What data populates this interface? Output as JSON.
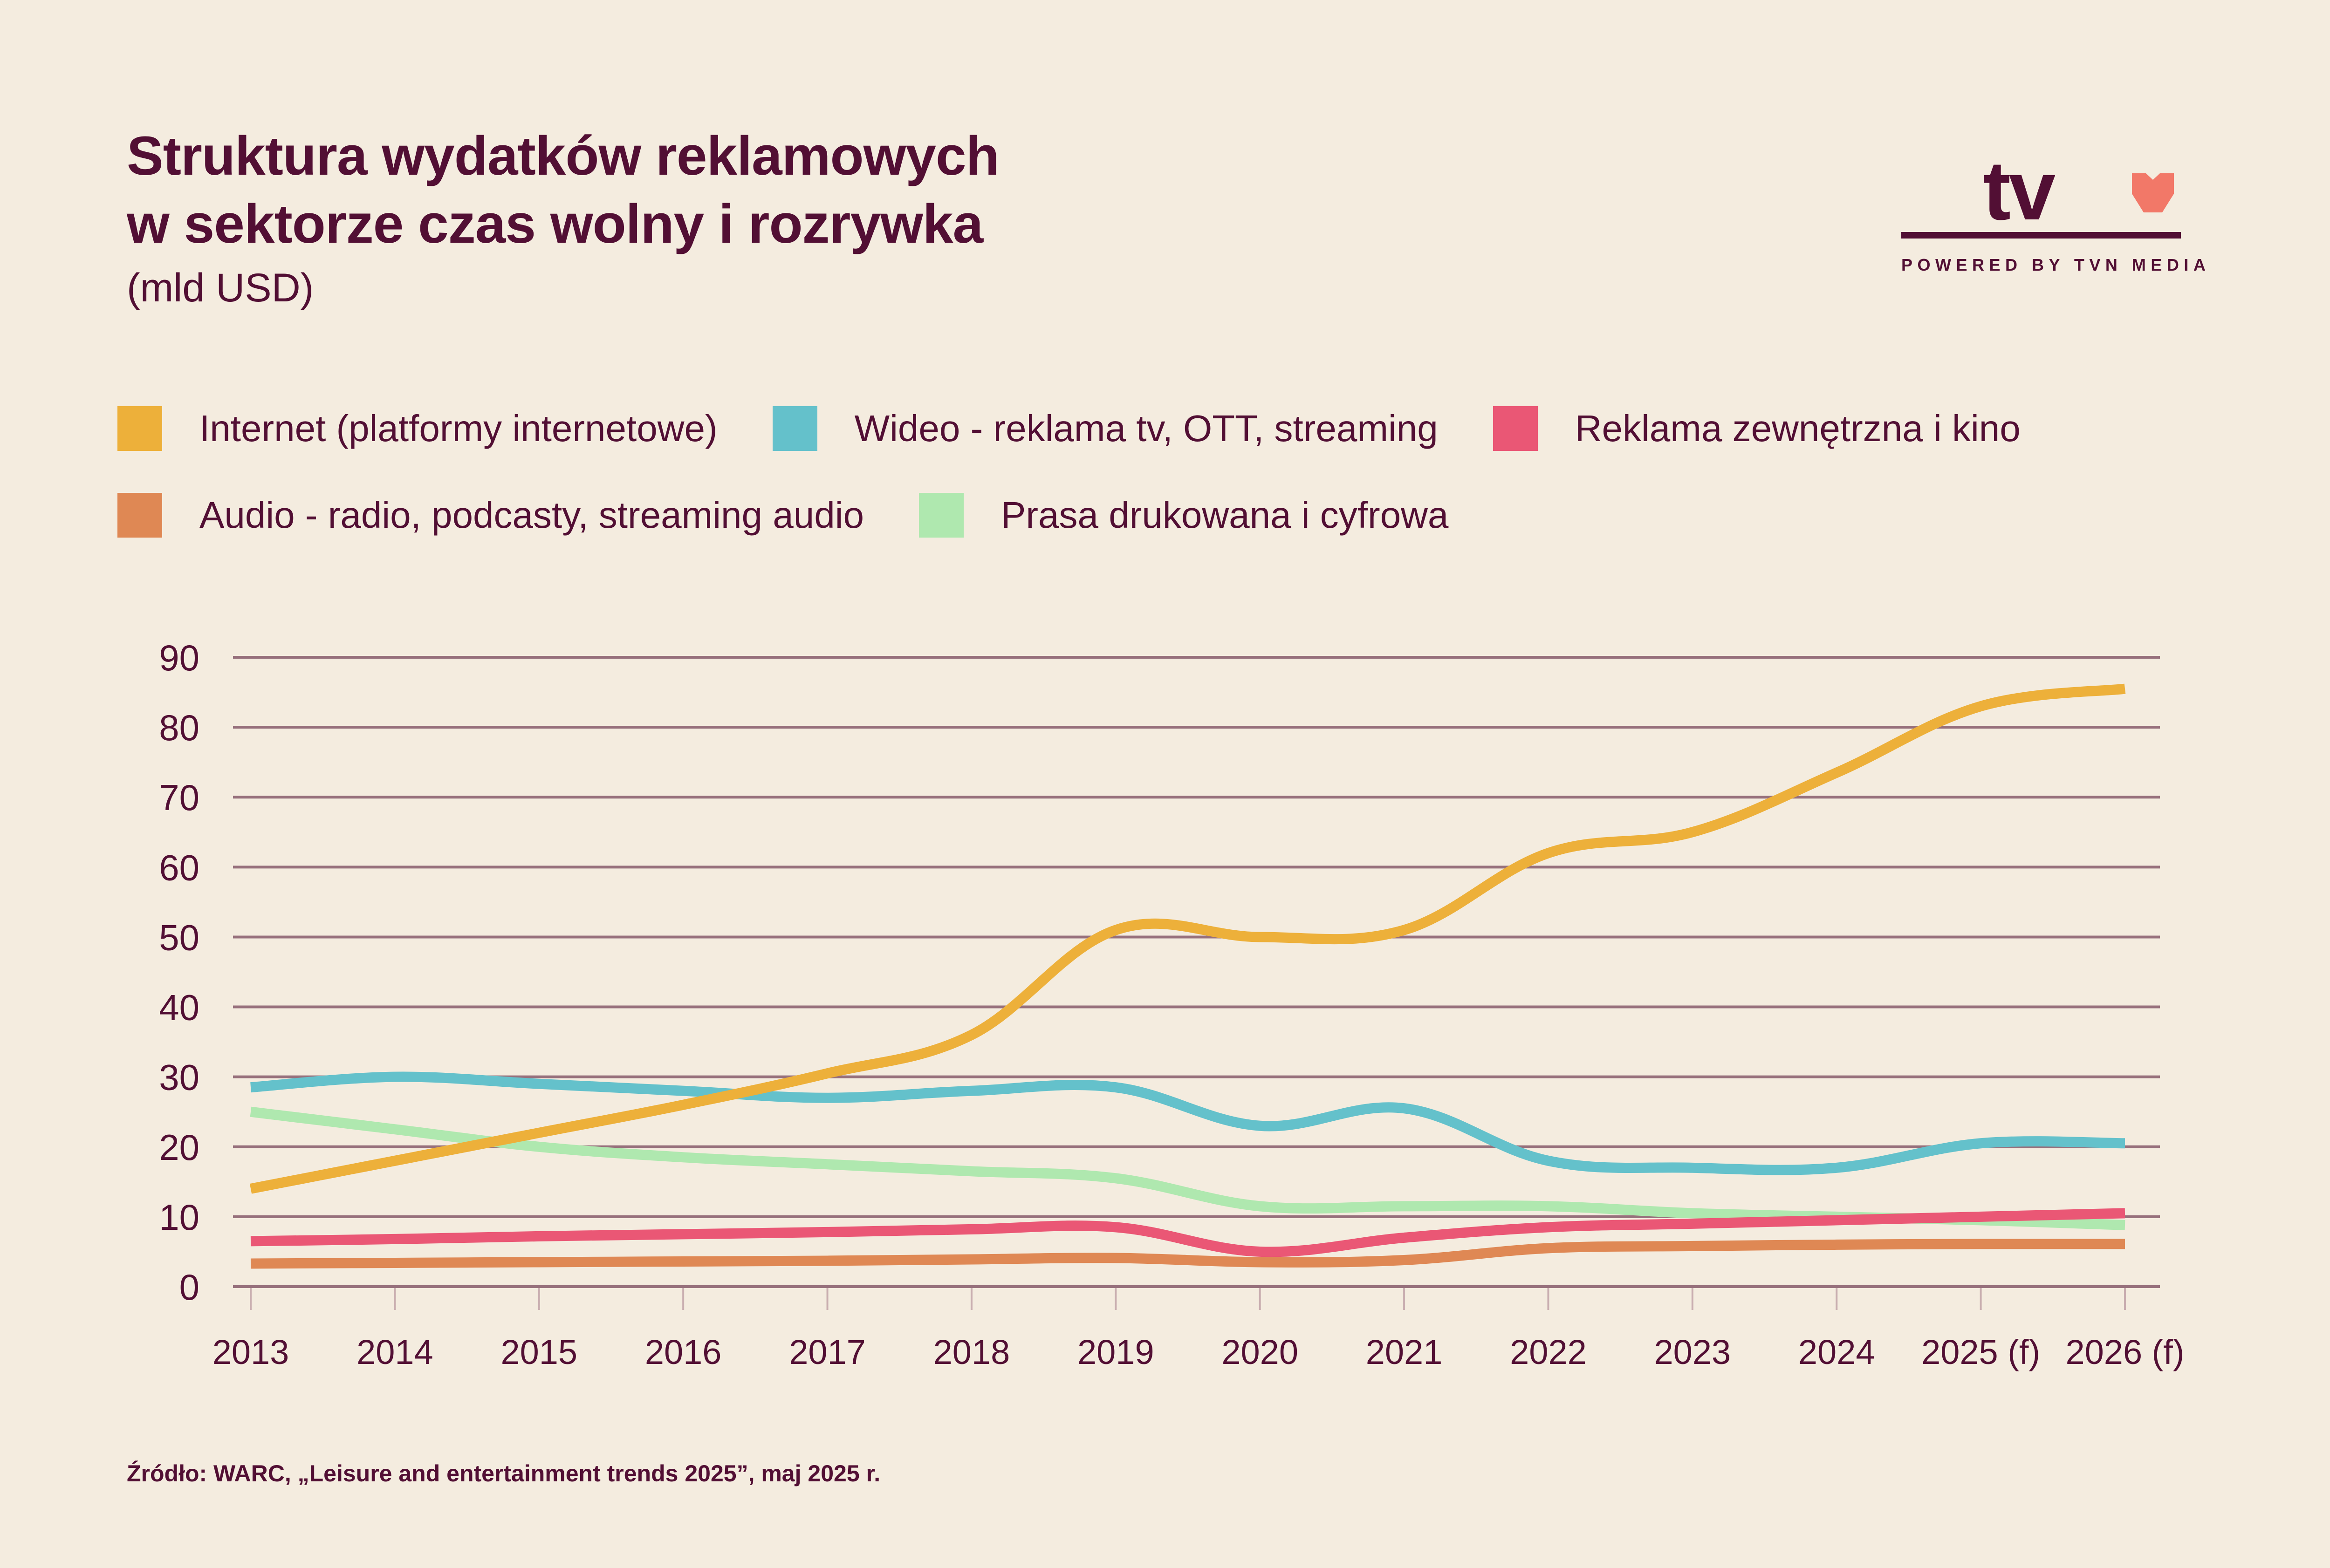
{
  "header": {
    "title_line1": "Struktura wydatków reklamowych",
    "title_line2": "w sektorze czas wolny i rozrywka",
    "subtitle": "(mld USD)"
  },
  "logo": {
    "wordmark": "tv",
    "icon": "heart-icon",
    "tagline": "POWERED BY TVN MEDIA",
    "accent_color": "#f27868"
  },
  "footer": {
    "source": "Źródło: WARC, „Leisure and entertainment trends 2025”, maj 2025 r."
  },
  "colors": {
    "background": "#f4ecdf",
    "text": "#520f34",
    "grid": "#97707c",
    "tick": "#c9aeb0"
  },
  "chart_data": {
    "type": "line",
    "title": "Struktura wydatków reklamowych w sektorze czas wolny i rozrywka",
    "subtitle": "(mld USD)",
    "xlabel": "",
    "ylabel": "",
    "ylim": [
      0,
      90
    ],
    "yticks": [
      0,
      10,
      20,
      30,
      40,
      50,
      60,
      70,
      80,
      90
    ],
    "grid": true,
    "legend_position": "top",
    "x": [
      "2013",
      "2014",
      "2015",
      "2016",
      "2017",
      "2018",
      "2019",
      "2020",
      "2021",
      "2022",
      "2023",
      "2024",
      "2025 (f)",
      "2026 (f)"
    ],
    "series": [
      {
        "name": "Internet (platformy internetowe)",
        "color": "#edb03a",
        "values": [
          14,
          18,
          22,
          26,
          30.5,
          36,
          51,
          50,
          51,
          62,
          65,
          73.5,
          83,
          85.5
        ]
      },
      {
        "name": "Wideo - reklama tv, OTT, streaming",
        "color": "#64c1cb",
        "values": [
          28.5,
          30,
          29,
          28,
          27,
          28,
          28.5,
          23,
          25.5,
          18,
          17,
          17,
          20.5,
          20.5
        ]
      },
      {
        "name": "Reklama zewnętrzna i kino",
        "color": "#ea5775",
        "values": [
          6.5,
          6.8,
          7.2,
          7.5,
          7.8,
          8.2,
          8.5,
          5,
          7,
          8.5,
          9,
          9.5,
          10,
          10.5
        ]
      },
      {
        "name": "Audio - radio, podcasty, streaming audio",
        "color": "#df8854",
        "values": [
          3.3,
          3.4,
          3.5,
          3.6,
          3.7,
          3.9,
          4.1,
          3.5,
          3.8,
          5.5,
          5.8,
          6,
          6.1,
          6.1
        ]
      },
      {
        "name": "Prasa drukowana i cyfrowa",
        "color": "#afe8af",
        "values": [
          25,
          22.5,
          20,
          18.5,
          17.5,
          16.5,
          15.5,
          11.5,
          11.5,
          11.5,
          10.5,
          10,
          9.5,
          8.8
        ]
      }
    ]
  }
}
